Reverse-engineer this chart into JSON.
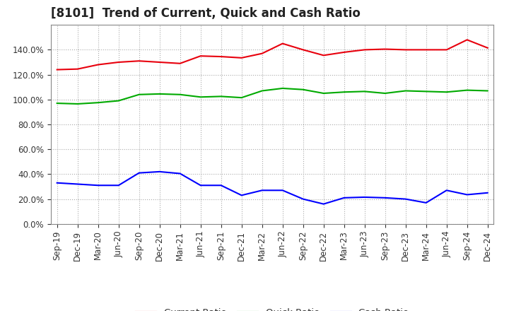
{
  "title": "[8101]  Trend of Current, Quick and Cash Ratio",
  "x_labels": [
    "Sep-19",
    "Dec-19",
    "Mar-20",
    "Jun-20",
    "Sep-20",
    "Dec-20",
    "Mar-21",
    "Jun-21",
    "Sep-21",
    "Dec-21",
    "Mar-22",
    "Jun-22",
    "Sep-22",
    "Dec-22",
    "Mar-23",
    "Jun-23",
    "Sep-23",
    "Dec-23",
    "Mar-24",
    "Jun-24",
    "Sep-24",
    "Dec-24"
  ],
  "current_ratio": [
    124.0,
    124.5,
    128.0,
    130.0,
    131.0,
    130.0,
    129.0,
    135.0,
    134.5,
    133.5,
    137.0,
    145.0,
    140.0,
    135.5,
    138.0,
    140.0,
    140.5,
    140.0,
    140.0,
    140.0,
    148.0,
    141.5
  ],
  "quick_ratio": [
    97.0,
    96.5,
    97.5,
    99.0,
    104.0,
    104.5,
    104.0,
    102.0,
    102.5,
    101.5,
    107.0,
    109.0,
    108.0,
    105.0,
    106.0,
    106.5,
    105.0,
    107.0,
    106.5,
    106.0,
    107.5,
    107.0
  ],
  "cash_ratio": [
    33.0,
    32.0,
    31.0,
    31.0,
    41.0,
    42.0,
    40.5,
    31.0,
    31.0,
    23.0,
    27.0,
    27.0,
    20.0,
    16.0,
    21.0,
    21.5,
    21.0,
    20.0,
    17.0,
    27.0,
    23.5,
    25.0
  ],
  "current_color": "#e8000d",
  "quick_color": "#00aa00",
  "cash_color": "#0000ff",
  "background_color": "#ffffff",
  "plot_bg_color": "#ffffff",
  "grid_color": "#aaaaaa",
  "ylim": [
    0,
    160
  ],
  "yticks": [
    0,
    20,
    40,
    60,
    80,
    100,
    120,
    140
  ],
  "legend_labels": [
    "Current Ratio",
    "Quick Ratio",
    "Cash Ratio"
  ],
  "title_fontsize": 12,
  "axis_fontsize": 8.5,
  "legend_fontsize": 9.5
}
